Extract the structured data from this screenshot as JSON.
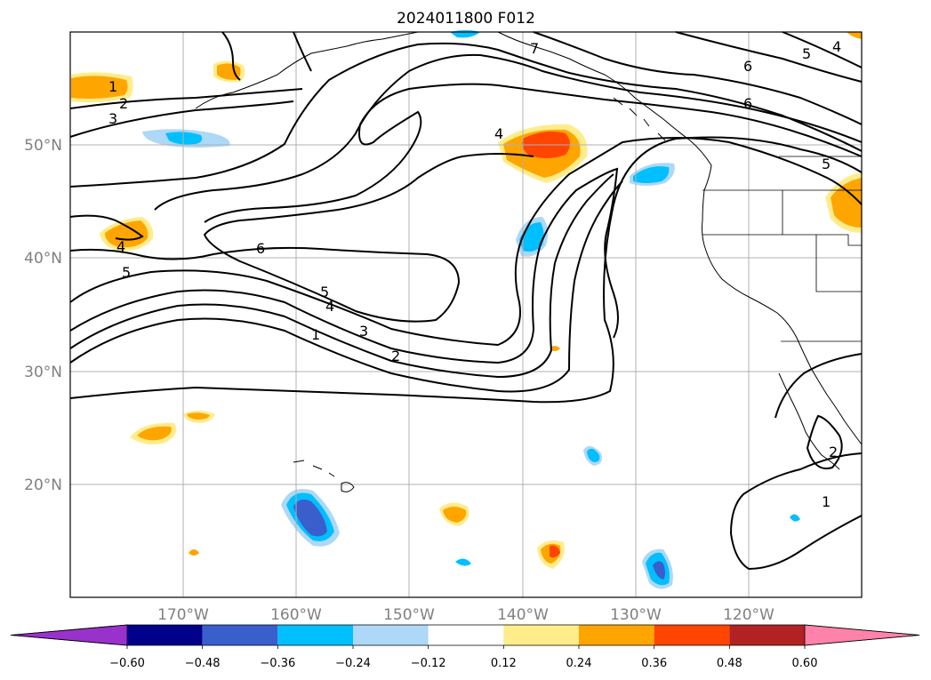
{
  "title": "2024011800 F012",
  "map": {
    "lat_labels": [
      "50°N",
      "40°N",
      "30°N",
      "20°N"
    ],
    "lon_labels": [
      "170°W",
      "160°W",
      "150°W",
      "140°W",
      "130°W",
      "120°W"
    ],
    "extent": {
      "lon_min": -180,
      "lon_max": -110,
      "lat_min": 10,
      "lat_max": 60
    },
    "grid": true
  },
  "colorbar": {
    "ticks": [
      "−0.60",
      "−0.48",
      "−0.36",
      "−0.24",
      "−0.12",
      "0.12",
      "0.24",
      "0.36",
      "0.48",
      "0.60"
    ],
    "colors": [
      "#9932cc",
      "#00008b",
      "#3a5fcd",
      "#00bfff",
      "#add8f7",
      "#ffffff",
      "#ffec8b",
      "#ffa500",
      "#ff4500",
      "#b22222",
      "#ff82ab"
    ],
    "extend": "both"
  },
  "contour_labels": [
    "1",
    "2",
    "3",
    "4",
    "5",
    "6",
    "7"
  ],
  "palette": {
    "grid": "#b0b0b0",
    "coast": "#000000"
  }
}
